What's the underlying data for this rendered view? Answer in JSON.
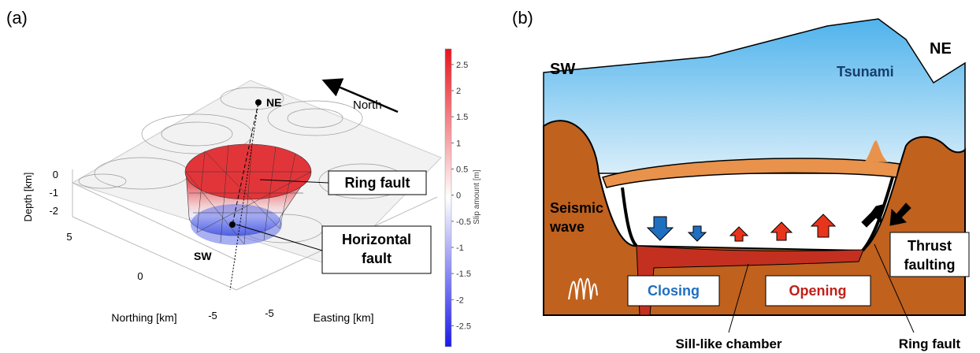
{
  "panel_a": {
    "label": "(a)",
    "ne": "NE",
    "sw": "SW",
    "north": "North",
    "ring_fault": "Ring fault",
    "horizontal_fault": [
      "Horizontal",
      "fault"
    ],
    "depth_axis": {
      "label": "Depth [km]",
      "ticks": [
        "0",
        "-1",
        "-2"
      ]
    },
    "northing_axis": {
      "label": "Northing [km]",
      "ticks": [
        "5",
        "0",
        "-5"
      ]
    },
    "easting_axis": {
      "label": "Easting [km]",
      "ticks": [
        "-5"
      ]
    },
    "colorbar": {
      "label": "Slip amount [m]",
      "lim": [
        -2.9,
        2.8
      ],
      "ticks": [
        2.5,
        2,
        1.5,
        1,
        0.5,
        0,
        -0.5,
        -1,
        -1.5,
        -2,
        -2.5
      ]
    }
  },
  "panel_b": {
    "label": "(b)",
    "sw": "SW",
    "ne": "NE",
    "tsunami": "Tsunami",
    "seismic_wave": [
      "Seismic",
      "wave"
    ],
    "closing": "Closing",
    "opening": "Opening",
    "thrust_faulting": [
      "Thrust",
      "faulting"
    ],
    "sill_like_chamber": "Sill-like chamber",
    "ring_fault": "Ring fault"
  }
}
